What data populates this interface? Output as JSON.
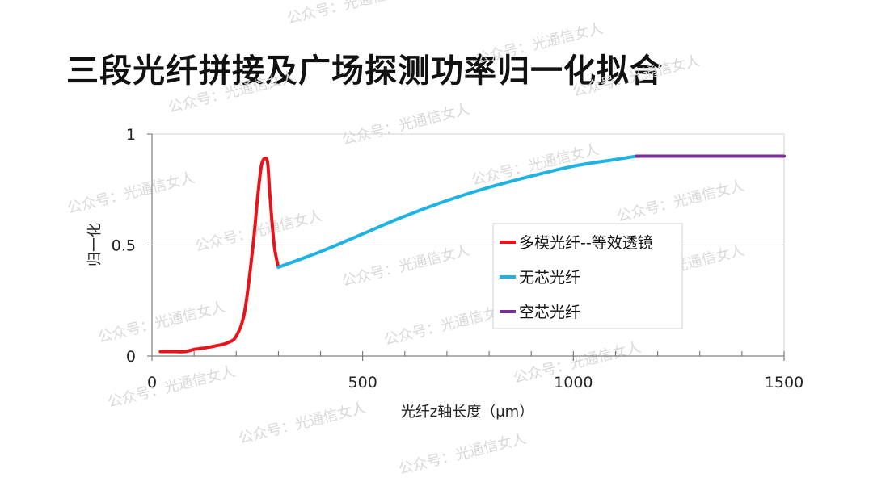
{
  "title": "三段光纤拼接及广场探测功率归一化拟合",
  "watermark": "公众号：光通信女人",
  "chart_data": {
    "type": "line",
    "xlabel": "光纤z轴长度（μm）",
    "ylabel": "归一化",
    "xlim": [
      0,
      1500
    ],
    "ylim": [
      0,
      1
    ],
    "x_ticks": [
      "0",
      "500",
      "1000",
      "1500"
    ],
    "y_ticks": [
      "0",
      "0.5",
      "1"
    ],
    "grid": "horizontal",
    "legend_position": "right",
    "series": [
      {
        "name": "多模光纤--等效透镜",
        "color": "#e8141b",
        "x": [
          20,
          50,
          80,
          100,
          120,
          150,
          180,
          200,
          220,
          240,
          250,
          260,
          270,
          275,
          280,
          290,
          300
        ],
        "y": [
          0.02,
          0.02,
          0.02,
          0.03,
          0.035,
          0.045,
          0.06,
          0.09,
          0.2,
          0.5,
          0.7,
          0.86,
          0.89,
          0.86,
          0.72,
          0.5,
          0.4
        ]
      },
      {
        "name": "无芯光纤",
        "color": "#1fb3e4",
        "x": [
          300,
          400,
          500,
          600,
          700,
          800,
          900,
          1000,
          1100,
          1150
        ],
        "y": [
          0.4,
          0.47,
          0.55,
          0.63,
          0.7,
          0.76,
          0.81,
          0.855,
          0.885,
          0.9
        ]
      },
      {
        "name": "空芯光纤",
        "color": "#7a2e98",
        "x": [
          1150,
          1300,
          1500
        ],
        "y": [
          0.9,
          0.9,
          0.9
        ]
      }
    ]
  }
}
